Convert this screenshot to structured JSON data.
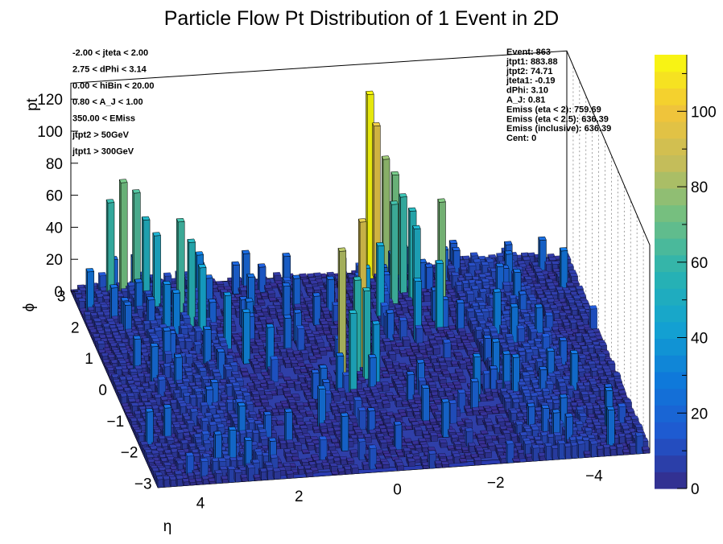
{
  "chart_data": {
    "type": "lego3d",
    "title": "Particle Flow Pt Distribution of 1 Event in 2D",
    "xlabel": "η",
    "ylabel": "ϕ",
    "zlabel": "pt",
    "xlim": [
      -5.0,
      5.0
    ],
    "ylim": [
      -3.14,
      3.14
    ],
    "zlim": [
      0,
      130
    ],
    "x_ticks": [
      "4",
      "2",
      "0",
      "−2",
      "−4"
    ],
    "y_ticks": [
      "−3",
      "−2",
      "−1",
      "0",
      "1",
      "2",
      "3"
    ],
    "z_ticks": [
      "0",
      "20",
      "40",
      "60",
      "80",
      "100",
      "120"
    ],
    "palette": {
      "ticks": [
        "0",
        "20",
        "40",
        "60",
        "80",
        "100"
      ],
      "range": [
        0,
        115
      ],
      "stops": [
        "#352a87",
        "#1f58d0",
        "#0f79da",
        "#13a3d1",
        "#2ab3b0",
        "#70bf82",
        "#c4bd5a",
        "#f3c538",
        "#f9fb0e"
      ]
    },
    "cuts": [
      "-2.00 < jteta < 2.00",
      "2.75 < dPhi < 3.14",
      "0.00 < hiBin < 20.00",
      "0.80 < A_J < 1.00",
      "350.00 < EMiss",
      "jtpt2 > 50GeV",
      "jtpt1 > 300GeV"
    ],
    "event_info": [
      "Event: 863",
      "jtpt1: 883.88",
      "jtpt2: 74.71",
      "jteta1: -0.19",
      "dPhi: 3.10",
      "A_J: 0.81",
      "Emiss (eta < 2): 759.69",
      "Emiss (eta < 2.5): 636.39",
      "Emiss (inclusive): 636.39",
      "Cent: 0"
    ],
    "peaks": [
      {
        "eta": -1.0,
        "phi": 2.95,
        "pt": 115
      },
      {
        "eta": -1.1,
        "phi": 2.95,
        "pt": 95
      },
      {
        "eta": -1.3,
        "phi": 2.8,
        "pt": 78
      },
      {
        "eta": -1.4,
        "phi": 2.6,
        "pt": 72
      },
      {
        "eta": -1.5,
        "phi": 2.5,
        "pt": 60
      },
      {
        "eta": -1.7,
        "phi": 2.3,
        "pt": 55
      },
      {
        "eta": -1.2,
        "phi": 2.1,
        "pt": 62
      },
      {
        "eta": -1.6,
        "phi": 1.9,
        "pt": 50
      },
      {
        "eta": -2.1,
        "phi": 1.5,
        "pt": 74
      },
      {
        "eta": -1.9,
        "phi": 1.2,
        "pt": 42
      },
      {
        "eta": -1.4,
        "phi": 0.9,
        "pt": 38
      },
      {
        "eta": -0.8,
        "phi": 1.7,
        "pt": 45
      },
      {
        "eta": -0.4,
        "phi": 1.3,
        "pt": 40
      },
      {
        "eta": -0.1,
        "phi": 0.2,
        "pt": 92
      },
      {
        "eta": 0.1,
        "phi": 0.1,
        "pt": 58
      },
      {
        "eta": 0.0,
        "phi": -0.2,
        "pt": 55
      },
      {
        "eta": -0.2,
        "phi": -0.4,
        "pt": 38
      },
      {
        "eta": 0.4,
        "phi": -0.3,
        "pt": 83
      },
      {
        "eta": 0.3,
        "phi": -0.6,
        "pt": 50
      },
      {
        "eta": 4.3,
        "phi": 2.9,
        "pt": 60
      },
      {
        "eta": 4.0,
        "phi": 2.9,
        "pt": 72
      },
      {
        "eta": 3.8,
        "phi": 2.9,
        "pt": 65
      },
      {
        "eta": 3.6,
        "phi": 2.7,
        "pt": 52
      },
      {
        "eta": 3.5,
        "phi": 2.4,
        "pt": 48
      },
      {
        "eta": 3.1,
        "phi": 2.0,
        "pt": 62
      },
      {
        "eta": 3.0,
        "phi": 1.7,
        "pt": 55
      },
      {
        "eta": 2.8,
        "phi": 1.4,
        "pt": 45
      },
      {
        "eta": 2.6,
        "phi": 2.6,
        "pt": 30
      },
      {
        "eta": 2.4,
        "phi": 1.0,
        "pt": 35
      },
      {
        "eta": 2.2,
        "phi": 0.6,
        "pt": 32
      },
      {
        "eta": 1.8,
        "phi": 0.3,
        "pt": 28
      },
      {
        "eta": -3.0,
        "phi": 0.8,
        "pt": 30
      },
      {
        "eta": -2.6,
        "phi": -0.6,
        "pt": 26
      },
      {
        "eta": -2.0,
        "phi": -1.1,
        "pt": 28
      },
      {
        "eta": 1.2,
        "phi": -1.6,
        "pt": 25
      },
      {
        "eta": -3.6,
        "phi": -0.8,
        "pt": 22
      }
    ]
  }
}
